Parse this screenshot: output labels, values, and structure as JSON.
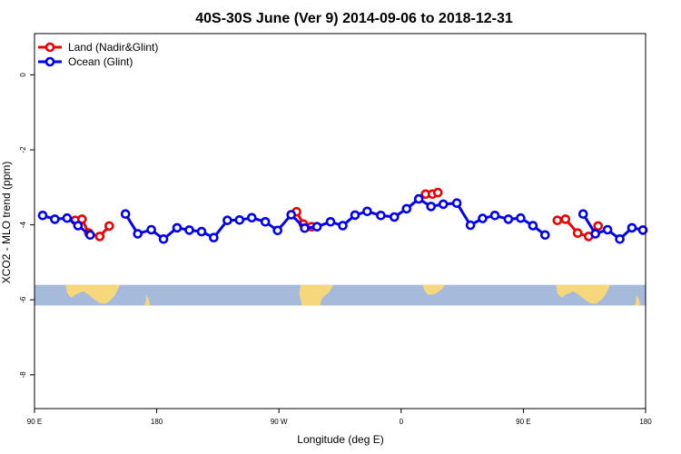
{
  "chart_data": {
    "type": "line",
    "title": "40S-30S June (Ver 9)   2014-09-06 to 2018-12-31",
    "xlabel": "Longitude (deg E)",
    "ylabel": "XCO2 - MLO trend (ppm)",
    "xlim": [
      90,
      540
    ],
    "ylim": [
      -8.9,
      1.1
    ],
    "x_ticks": [
      {
        "value": 90,
        "label": "90 E"
      },
      {
        "value": 180,
        "label": "180"
      },
      {
        "value": 270,
        "label": "90 W"
      },
      {
        "value": 360,
        "label": "0"
      },
      {
        "value": 450,
        "label": "90 E"
      },
      {
        "value": 540,
        "label": "180"
      }
    ],
    "y_ticks": [
      {
        "value": 0,
        "label": "0"
      },
      {
        "value": -2,
        "label": "-2"
      },
      {
        "value": -4,
        "label": "-4"
      },
      {
        "value": -6,
        "label": "-6"
      },
      {
        "value": -8,
        "label": "-8"
      }
    ],
    "grid": false,
    "legend_position": "top-left",
    "map_band": {
      "y_top": -5.6,
      "y_bottom": -6.15,
      "ocean_color": "#a6bbdb",
      "land_color": "#f7d77b"
    },
    "series": [
      {
        "name": "Land (Nadir&Glint)",
        "color": "#ee0000",
        "segments": [
          [
            [
              120,
              -3.88
            ],
            [
              125,
              -3.85
            ],
            [
              130,
              -4.22
            ],
            [
              138,
              -4.31
            ],
            [
              145,
              -4.03
            ]
          ],
          [
            [
              283,
              -3.65
            ],
            [
              288,
              -3.98
            ],
            [
              294,
              -4.05
            ]
          ],
          [
            [
              378,
              -3.18
            ],
            [
              383,
              -3.18
            ],
            [
              387,
              -3.14
            ]
          ],
          [
            [
              475,
              -3.88
            ],
            [
              481,
              -3.85
            ],
            [
              490,
              -4.22
            ],
            [
              498,
              -4.31
            ],
            [
              505,
              -4.03
            ]
          ]
        ]
      },
      {
        "name": "Ocean (Glint)",
        "color": "#0000ee",
        "segments": [
          [
            [
              96,
              -3.75
            ],
            [
              105,
              -3.85
            ],
            [
              114,
              -3.82
            ],
            [
              122,
              -4.02
            ],
            [
              131,
              -4.27
            ]
          ],
          [
            [
              157,
              -3.71
            ],
            [
              166,
              -4.24
            ],
            [
              176,
              -4.13
            ],
            [
              185,
              -4.38
            ],
            [
              195,
              -4.08
            ],
            [
              204,
              -4.14
            ],
            [
              213,
              -4.18
            ],
            [
              222,
              -4.34
            ],
            [
              232,
              -3.88
            ],
            [
              241,
              -3.87
            ],
            [
              250,
              -3.81
            ],
            [
              260,
              -3.92
            ],
            [
              269,
              -4.15
            ],
            [
              279,
              -3.73
            ],
            [
              289,
              -4.09
            ],
            [
              298,
              -4.05
            ],
            [
              308,
              -3.92
            ],
            [
              317,
              -4.02
            ],
            [
              326,
              -3.74
            ],
            [
              335,
              -3.64
            ],
            [
              345,
              -3.75
            ],
            [
              355,
              -3.79
            ],
            [
              364,
              -3.57
            ],
            [
              373,
              -3.31
            ],
            [
              382,
              -3.51
            ],
            [
              391,
              -3.45
            ],
            [
              401,
              -3.42
            ],
            [
              411,
              -4.01
            ],
            [
              420,
              -3.83
            ],
            [
              429,
              -3.75
            ],
            [
              439,
              -3.85
            ],
            [
              448,
              -3.82
            ],
            [
              457,
              -4.02
            ],
            [
              466,
              -4.27
            ]
          ],
          [
            [
              494,
              -3.71
            ],
            [
              503,
              -4.24
            ],
            [
              512,
              -4.13
            ],
            [
              521,
              -4.38
            ],
            [
              530,
              -4.08
            ],
            [
              538,
              -4.14
            ]
          ]
        ]
      }
    ]
  }
}
